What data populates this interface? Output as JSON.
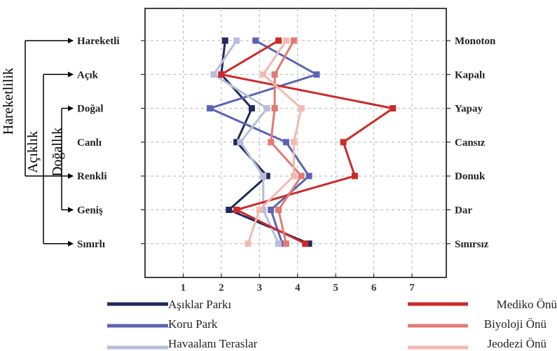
{
  "chart_data": {
    "type": "line",
    "orientation": "horizontal-profile",
    "left_labels": [
      "Hareketli",
      "Açık",
      "Doğal",
      "Canlı",
      "Renkli",
      "Geniş",
      "Sınırlı"
    ],
    "right_labels": [
      "Monoton",
      "Kapalı",
      "Yapay",
      "Cansız",
      "Donuk",
      "Dar",
      "Sınırsız"
    ],
    "x_ticks": [
      "1",
      "2",
      "3",
      "4",
      "5",
      "6",
      "7"
    ],
    "xlim": [
      0,
      7.9
    ],
    "grid": true,
    "groups": [
      {
        "label": "Hareketlilik",
        "rows": [
          0,
          4
        ]
      },
      {
        "label": "Açıklık",
        "rows": [
          1,
          6
        ]
      },
      {
        "label": "Doğallık",
        "rows": [
          2,
          5
        ]
      }
    ],
    "series": [
      {
        "name": "Aşıklar Parkı",
        "color": "#1f2a5c",
        "values": [
          2.1,
          2.0,
          2.8,
          2.4,
          3.2,
          2.2,
          4.3
        ]
      },
      {
        "name": "Koru Park",
        "color": "#5a64b4",
        "values": [
          2.9,
          4.5,
          1.7,
          3.7,
          4.3,
          3.3,
          3.6
        ]
      },
      {
        "name": "Havaalanı Teraslar",
        "color": "#b7bedb",
        "values": [
          2.4,
          1.8,
          3.2,
          2.5,
          3.1,
          3.1,
          3.5
        ]
      },
      {
        "name": "Mediko Önü",
        "color": "#cc2a2a",
        "values": [
          3.5,
          2.0,
          6.5,
          5.2,
          5.5,
          2.4,
          4.2
        ]
      },
      {
        "name": "Biyoloji Önü",
        "color": "#e27a72",
        "values": [
          3.9,
          3.4,
          3.4,
          3.3,
          4.1,
          3.5,
          3.7
        ]
      },
      {
        "name": "Jeodezi Önü",
        "color": "#f2b9b2",
        "values": [
          3.7,
          3.1,
          4.1,
          3.9,
          3.9,
          3.0,
          2.7
        ]
      }
    ]
  }
}
